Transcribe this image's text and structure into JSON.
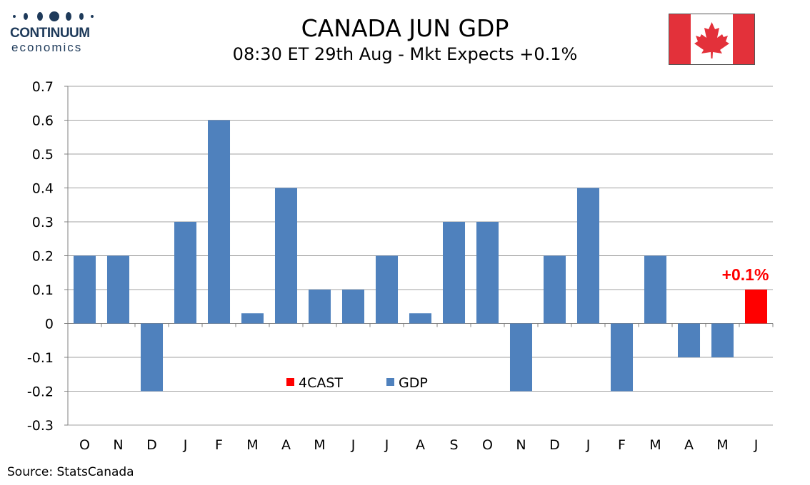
{
  "logo": {
    "name": "CONTINUUM",
    "sub": "economics"
  },
  "header": {
    "title": "CANADA JUN GDP",
    "subtitle": "08:30 ET 29th Aug - Mkt Expects +0.1%"
  },
  "flag_icon": "canada-flag-icon",
  "colors": {
    "gdp": "#4f81bd",
    "forecast": "#ff0000",
    "flag_red": "#e3313a",
    "annotation": "#ff0000"
  },
  "chart_data": {
    "type": "bar",
    "title": "CANADA JUN GDP",
    "subtitle": "08:30 ET 29th Aug - Mkt Expects +0.1%",
    "categories": [
      "O",
      "N",
      "D",
      "J",
      "F",
      "M",
      "A",
      "M",
      "J",
      "J",
      "A",
      "S",
      "O",
      "N",
      "D",
      "J",
      "F",
      "M",
      "A",
      "M",
      "J"
    ],
    "series": [
      {
        "name": "GDP",
        "color": "#4f81bd",
        "values": [
          0.2,
          0.2,
          -0.2,
          0.3,
          0.6,
          0.03,
          0.4,
          0.1,
          0.1,
          0.2,
          0.03,
          0.3,
          0.3,
          -0.2,
          0.2,
          0.4,
          -0.2,
          0.2,
          -0.1,
          -0.1,
          null
        ]
      },
      {
        "name": "4CAST",
        "color": "#ff0000",
        "values": [
          null,
          null,
          null,
          null,
          null,
          null,
          null,
          null,
          null,
          null,
          null,
          null,
          null,
          null,
          null,
          null,
          null,
          null,
          null,
          null,
          0.1
        ]
      }
    ],
    "ylim": [
      -0.3,
      0.7
    ],
    "yticks": [
      "-0.3",
      "-0.2",
      "-0.1",
      "0",
      "0.1",
      "0.2",
      "0.3",
      "0.4",
      "0.5",
      "0.6",
      "0.7"
    ],
    "annotation": {
      "text": "+0.1%",
      "category_index": 20,
      "value": 0.1
    },
    "legend": {
      "placement": "bottom-center-inside",
      "entries": [
        "4CAST",
        "GDP"
      ]
    },
    "grid": true,
    "xlabel": "",
    "ylabel": ""
  },
  "source": "Source: StatsCanada"
}
